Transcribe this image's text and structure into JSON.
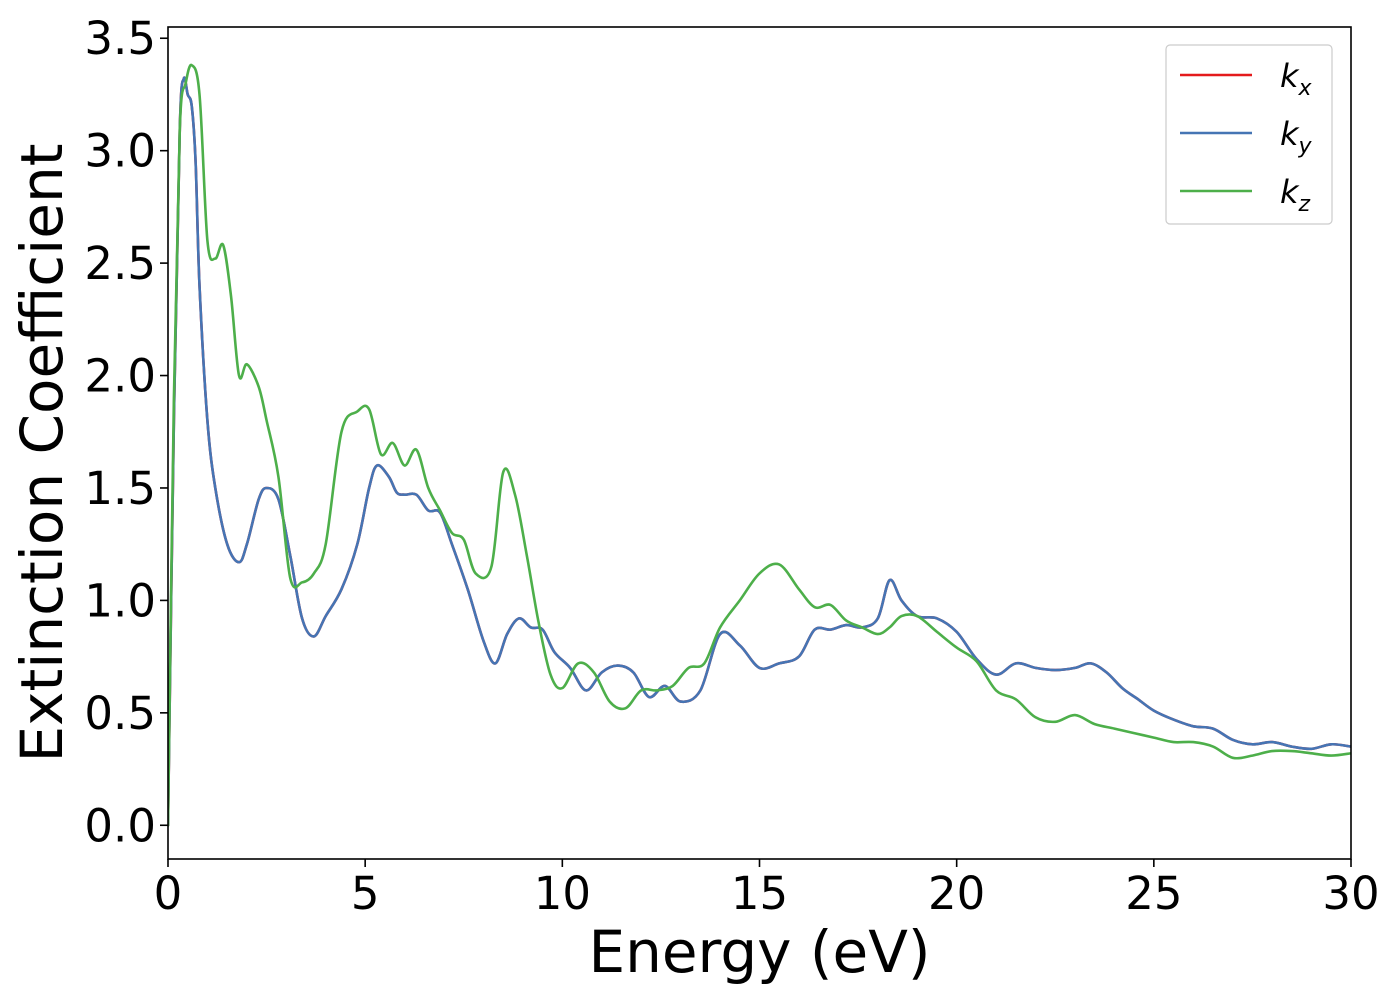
{
  "chart_data": {
    "type": "line",
    "title": "",
    "xlabel": "Energy (eV)",
    "ylabel": "Extinction Coefficient",
    "xlim": [
      0,
      30
    ],
    "ylim": [
      -0.15,
      3.55
    ],
    "xticks": [
      0,
      5,
      10,
      15,
      20,
      25,
      30
    ],
    "xtick_labels": [
      "0",
      "5",
      "10",
      "15",
      "20",
      "25",
      "30"
    ],
    "yticks": [
      0.0,
      0.5,
      1.0,
      1.5,
      2.0,
      2.5,
      3.0,
      3.5
    ],
    "ytick_labels": [
      "0.0",
      "0.5",
      "1.0",
      "1.5",
      "2.0",
      "2.5",
      "3.0",
      "3.5"
    ],
    "grid": false,
    "legend_position": "top-right",
    "series": [
      {
        "name": "k",
        "subscript": "x",
        "color": "#e41a1c",
        "x": [
          0,
          0.15,
          0.3,
          0.4,
          0.5,
          0.6,
          0.7,
          0.8,
          1.0,
          1.2,
          1.5,
          1.8,
          2.0,
          2.3,
          2.5,
          2.8,
          3.1,
          3.4,
          3.7,
          4.0,
          4.4,
          4.8,
          5.1,
          5.3,
          5.6,
          5.8,
          6.0,
          6.3,
          6.6,
          6.9,
          7.2,
          7.6,
          8.0,
          8.3,
          8.6,
          8.9,
          9.2,
          9.5,
          9.8,
          10.2,
          10.6,
          11.0,
          11.4,
          11.8,
          12.2,
          12.6,
          13.0,
          13.5,
          14.0,
          14.5,
          15.0,
          15.5,
          16.0,
          16.4,
          16.8,
          17.2,
          17.6,
          18.0,
          18.3,
          18.6,
          19.0,
          19.5,
          20.0,
          20.5,
          21.0,
          21.5,
          22.0,
          22.5,
          23.0,
          23.4,
          23.8,
          24.2,
          24.6,
          25.0,
          25.5,
          26.0,
          26.5,
          27.0,
          27.5,
          28.0,
          28.5,
          29.0,
          29.5,
          30.0
        ],
        "y": [
          0.0,
          1.8,
          3.1,
          3.32,
          3.25,
          3.2,
          2.95,
          2.4,
          1.8,
          1.5,
          1.25,
          1.17,
          1.25,
          1.45,
          1.5,
          1.45,
          1.2,
          0.92,
          0.84,
          0.93,
          1.05,
          1.25,
          1.5,
          1.6,
          1.55,
          1.48,
          1.47,
          1.47,
          1.4,
          1.39,
          1.25,
          1.05,
          0.82,
          0.72,
          0.85,
          0.92,
          0.88,
          0.87,
          0.77,
          0.7,
          0.6,
          0.68,
          0.71,
          0.68,
          0.57,
          0.62,
          0.55,
          0.6,
          0.85,
          0.8,
          0.7,
          0.72,
          0.75,
          0.87,
          0.87,
          0.89,
          0.88,
          0.92,
          1.09,
          1.0,
          0.93,
          0.92,
          0.86,
          0.74,
          0.67,
          0.72,
          0.7,
          0.69,
          0.7,
          0.72,
          0.68,
          0.61,
          0.56,
          0.51,
          0.47,
          0.44,
          0.43,
          0.38,
          0.36,
          0.37,
          0.35,
          0.34,
          0.36,
          0.35
        ]
      },
      {
        "name": "k",
        "subscript": "y",
        "color": "#4575b4",
        "x": [
          0,
          0.15,
          0.3,
          0.4,
          0.5,
          0.6,
          0.7,
          0.8,
          1.0,
          1.2,
          1.5,
          1.8,
          2.0,
          2.3,
          2.5,
          2.8,
          3.1,
          3.4,
          3.7,
          4.0,
          4.4,
          4.8,
          5.1,
          5.3,
          5.6,
          5.8,
          6.0,
          6.3,
          6.6,
          6.9,
          7.2,
          7.6,
          8.0,
          8.3,
          8.6,
          8.9,
          9.2,
          9.5,
          9.8,
          10.2,
          10.6,
          11.0,
          11.4,
          11.8,
          12.2,
          12.6,
          13.0,
          13.5,
          14.0,
          14.5,
          15.0,
          15.5,
          16.0,
          16.4,
          16.8,
          17.2,
          17.6,
          18.0,
          18.3,
          18.6,
          19.0,
          19.5,
          20.0,
          20.5,
          21.0,
          21.5,
          22.0,
          22.5,
          23.0,
          23.4,
          23.8,
          24.2,
          24.6,
          25.0,
          25.5,
          26.0,
          26.5,
          27.0,
          27.5,
          28.0,
          28.5,
          29.0,
          29.5,
          30.0
        ],
        "y": [
          0.0,
          1.8,
          3.1,
          3.32,
          3.25,
          3.2,
          2.95,
          2.4,
          1.8,
          1.5,
          1.25,
          1.17,
          1.25,
          1.45,
          1.5,
          1.45,
          1.2,
          0.92,
          0.84,
          0.93,
          1.05,
          1.25,
          1.5,
          1.6,
          1.55,
          1.48,
          1.47,
          1.47,
          1.4,
          1.39,
          1.25,
          1.05,
          0.82,
          0.72,
          0.85,
          0.92,
          0.88,
          0.87,
          0.77,
          0.7,
          0.6,
          0.68,
          0.71,
          0.68,
          0.57,
          0.62,
          0.55,
          0.6,
          0.85,
          0.8,
          0.7,
          0.72,
          0.75,
          0.87,
          0.87,
          0.89,
          0.88,
          0.92,
          1.09,
          1.0,
          0.93,
          0.92,
          0.86,
          0.74,
          0.67,
          0.72,
          0.7,
          0.69,
          0.7,
          0.72,
          0.68,
          0.61,
          0.56,
          0.51,
          0.47,
          0.44,
          0.43,
          0.38,
          0.36,
          0.37,
          0.35,
          0.34,
          0.36,
          0.35
        ]
      },
      {
        "name": "k",
        "subscript": "z",
        "color": "#4daf4a",
        "x": [
          0,
          0.15,
          0.3,
          0.45,
          0.6,
          0.8,
          1.0,
          1.2,
          1.4,
          1.6,
          1.8,
          2.0,
          2.3,
          2.5,
          2.8,
          3.1,
          3.4,
          3.7,
          4.0,
          4.4,
          4.8,
          5.1,
          5.4,
          5.7,
          6.0,
          6.3,
          6.6,
          6.9,
          7.2,
          7.5,
          7.8,
          8.2,
          8.5,
          8.8,
          9.1,
          9.4,
          9.7,
          10.0,
          10.4,
          10.8,
          11.2,
          11.6,
          12.0,
          12.4,
          12.8,
          13.2,
          13.6,
          14.0,
          14.5,
          15.0,
          15.5,
          16.0,
          16.4,
          16.8,
          17.2,
          17.6,
          18.0,
          18.3,
          18.6,
          19.0,
          19.5,
          20.0,
          20.5,
          21.0,
          21.5,
          22.0,
          22.5,
          23.0,
          23.5,
          24.0,
          24.5,
          25.0,
          25.5,
          26.0,
          26.5,
          27.0,
          27.5,
          28.0,
          28.5,
          29.0,
          29.5,
          30.0
        ],
        "y": [
          0.0,
          1.9,
          3.1,
          3.3,
          3.38,
          3.25,
          2.6,
          2.52,
          2.58,
          2.35,
          2.0,
          2.05,
          1.95,
          1.8,
          1.55,
          1.1,
          1.08,
          1.12,
          1.25,
          1.75,
          1.84,
          1.85,
          1.65,
          1.7,
          1.6,
          1.67,
          1.5,
          1.4,
          1.3,
          1.27,
          1.12,
          1.15,
          1.57,
          1.47,
          1.2,
          0.9,
          0.67,
          0.61,
          0.72,
          0.68,
          0.55,
          0.52,
          0.6,
          0.6,
          0.62,
          0.7,
          0.72,
          0.88,
          1.0,
          1.12,
          1.16,
          1.05,
          0.97,
          0.98,
          0.91,
          0.88,
          0.85,
          0.88,
          0.93,
          0.93,
          0.86,
          0.79,
          0.73,
          0.6,
          0.56,
          0.48,
          0.46,
          0.49,
          0.45,
          0.43,
          0.41,
          0.39,
          0.37,
          0.37,
          0.35,
          0.3,
          0.31,
          0.33,
          0.33,
          0.32,
          0.31,
          0.32
        ]
      }
    ]
  }
}
